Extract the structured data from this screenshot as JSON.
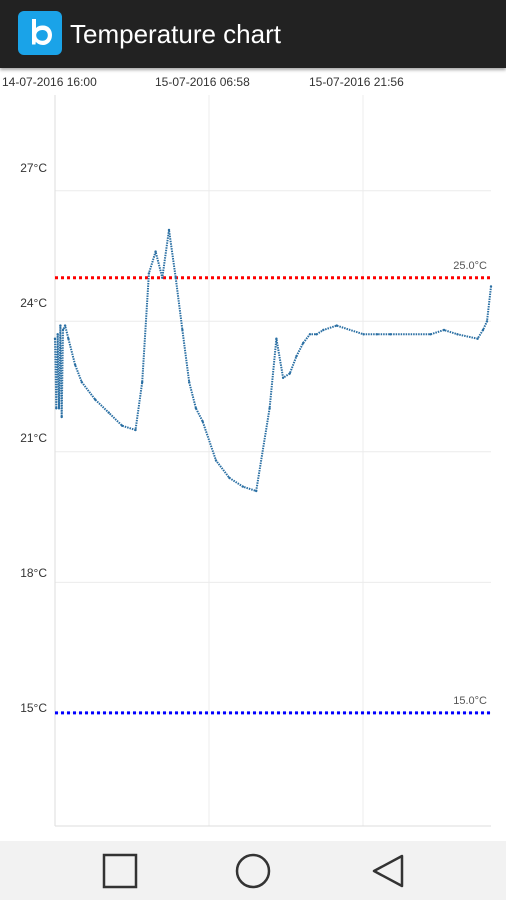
{
  "app": {
    "title": "Temperature chart",
    "icon": "b-app-icon"
  },
  "chart_data": {
    "type": "line",
    "x_tick_labels": [
      "14-07-2016 16:00",
      "15-07-2016 06:58",
      "15-07-2016 21:56"
    ],
    "y_tick_labels": [
      "27°C",
      "24°C",
      "21°C",
      "18°C",
      "15°C"
    ],
    "y_ticks": [
      27,
      24,
      21,
      18,
      15
    ],
    "ylim": [
      12.4,
      29.2
    ],
    "grid": true,
    "thresholds": [
      {
        "label": "25.0°C",
        "value": 25.0,
        "color": "#ff0000"
      },
      {
        "label": "15.0°C",
        "value": 15.0,
        "color": "#0000ff"
      }
    ],
    "series": [
      {
        "color": "#2a6fa3",
        "x_hours": [
          0,
          0.2,
          0.4,
          0.6,
          0.8,
          1,
          1.2,
          1.5,
          2,
          3,
          4,
          6,
          8,
          10,
          12,
          13,
          14,
          15,
          16,
          17,
          18,
          19,
          20,
          21,
          22,
          24,
          26,
          28,
          30,
          32,
          33,
          34,
          35,
          36,
          37,
          38,
          39,
          40,
          42,
          46,
          48,
          50,
          56,
          58,
          60,
          63,
          63.8,
          64.4,
          65
        ],
        "temperatures": [
          23.6,
          22.0,
          23.7,
          22.0,
          23.9,
          21.8,
          23.8,
          23.9,
          23.6,
          23.0,
          22.6,
          22.2,
          21.9,
          21.6,
          21.5,
          22.6,
          25.1,
          25.6,
          25.0,
          26.1,
          25.0,
          23.8,
          22.6,
          22.0,
          21.7,
          20.8,
          20.4,
          20.2,
          20.1,
          22.0,
          23.6,
          22.7,
          22.8,
          23.2,
          23.5,
          23.7,
          23.7,
          23.8,
          23.9,
          23.7,
          23.7,
          23.7,
          23.7,
          23.8,
          23.7,
          23.6,
          23.8,
          24.0,
          24.8
        ]
      }
    ]
  },
  "nav": {
    "buttons": [
      "square-icon",
      "circle-icon",
      "triangle-back-icon"
    ]
  }
}
